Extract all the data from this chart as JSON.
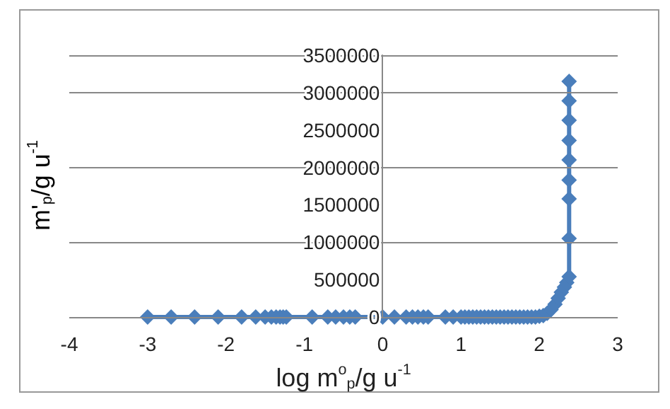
{
  "chart_data": {
    "type": "line",
    "xlabel": "log m$^{o}$$_{p}$/g u$^{-1}$",
    "ylabel": "m'$_{p}$/g u$^{-1}$",
    "series": [
      {
        "color": "#4a7ebb",
        "x": [
          -3,
          -2.7,
          -2.4,
          -2.1,
          -1.8,
          -1.62,
          -1.5,
          -1.42,
          -1.36,
          -1.31,
          -1.27,
          -1.23,
          -0.9,
          -0.7,
          -0.6,
          -0.5,
          -0.42,
          -0.35,
          0,
          0.15,
          0.3,
          0.38,
          0.45,
          0.52,
          0.58,
          0.8,
          0.9,
          1,
          1.05,
          1.1,
          1.15,
          1.2,
          1.25,
          1.3,
          1.35,
          1.4,
          1.45,
          1.5,
          1.55,
          1.6,
          1.65,
          1.7,
          1.75,
          1.8,
          1.85,
          1.9,
          1.95,
          2,
          2.05,
          2.1,
          2.15,
          2.2,
          2.24,
          2.28,
          2.32,
          2.35,
          2.38,
          2.38,
          2.38,
          2.38,
          2.38,
          2.38,
          2.38,
          2.38,
          2.38
        ],
        "values": [
          0,
          0,
          0,
          0,
          0,
          0,
          0,
          0,
          0,
          0,
          0,
          0,
          0,
          0,
          0,
          0,
          0,
          0,
          0,
          0,
          0,
          0,
          0,
          0,
          0,
          0,
          0,
          0,
          0,
          0,
          0,
          0,
          0,
          0,
          0,
          0,
          0,
          0,
          0,
          0,
          0,
          0,
          0,
          0,
          0,
          0,
          0,
          10000,
          20000,
          50000,
          100000,
          170000,
          250000,
          330000,
          400000,
          460000,
          540000,
          1050000,
          1580000,
          1830000,
          2100000,
          2360000,
          2630000,
          2890000,
          3150000
        ]
      }
    ],
    "xlim": [
      -4,
      3
    ],
    "xticks": [
      -4,
      -3,
      -2,
      -1,
      0,
      1,
      2,
      3
    ],
    "ylim": [
      0,
      3500000
    ],
    "yticks": [
      0,
      500000,
      1000000,
      1500000,
      2000000,
      2500000,
      3000000,
      3500000
    ],
    "grid": "y",
    "marker": "diamond",
    "line_style": "solid"
  }
}
